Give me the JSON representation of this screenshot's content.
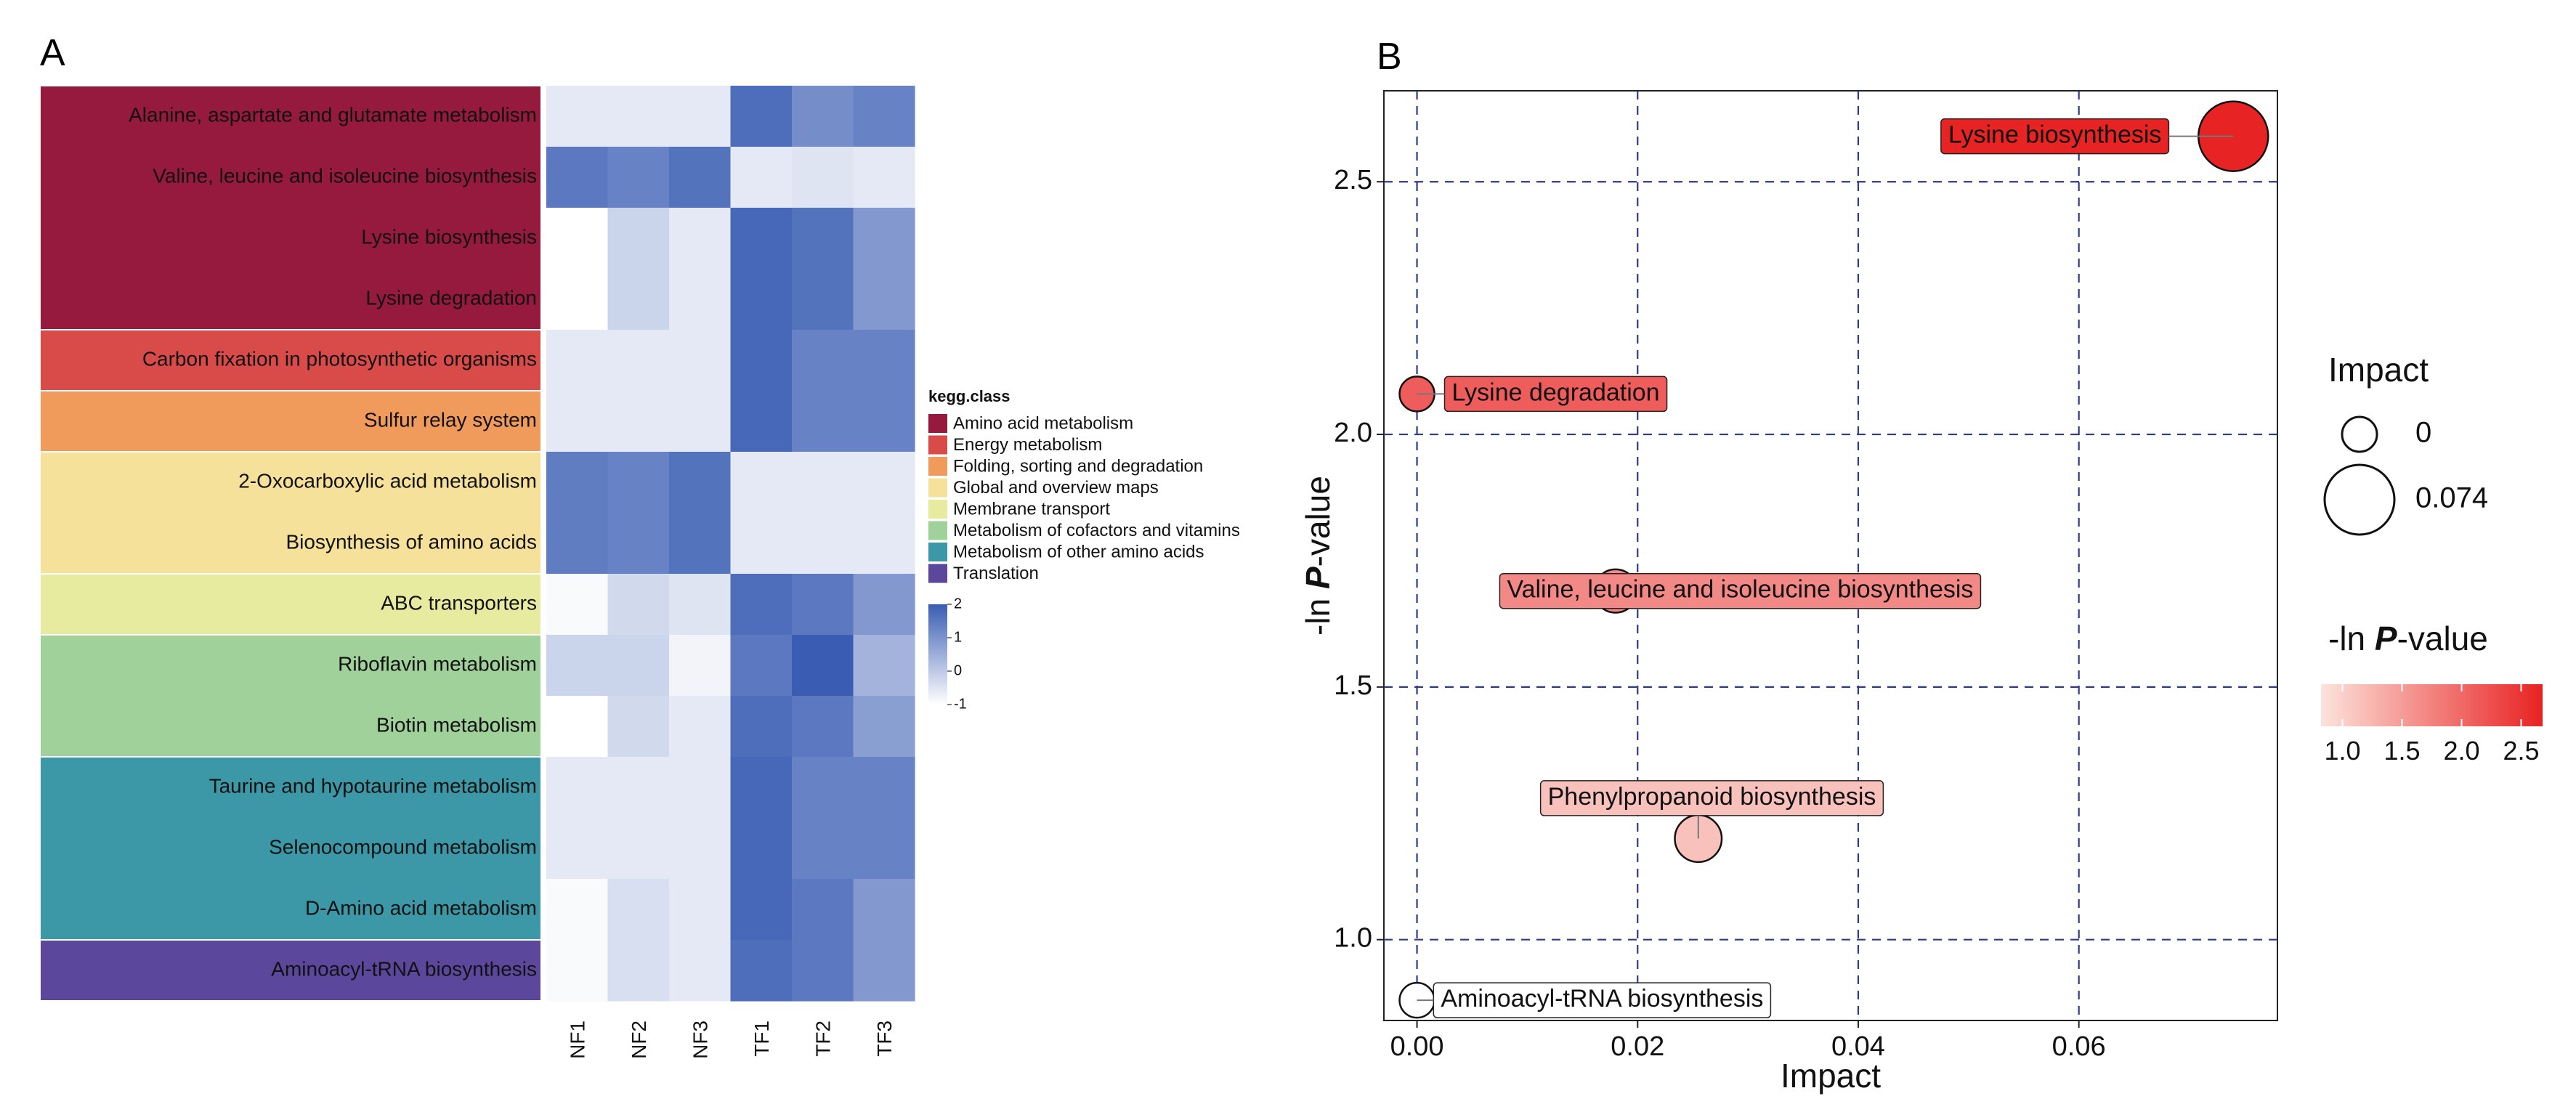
{
  "panel_a": {
    "label": "A",
    "legend_title": "kegg.class",
    "classes": [
      {
        "name": "Amino acid metabolism",
        "color": "#96193E"
      },
      {
        "name": "Energy metabolism",
        "color": "#D94B48"
      },
      {
        "name": "Folding, sorting and degradation",
        "color": "#F09A5C"
      },
      {
        "name": "Global and overview maps",
        "color": "#F6E19A"
      },
      {
        "name": "Membrane transport",
        "color": "#E7EBA0"
      },
      {
        "name": "Metabolism of cofactors and vitamins",
        "color": "#A0D19A"
      },
      {
        "name": "Metabolism of other amino acids",
        "color": "#3C98A7"
      },
      {
        "name": "Translation",
        "color": "#5B479C"
      }
    ],
    "color_scale": {
      "ticks": [
        2,
        1,
        0,
        -1
      ],
      "low": "#FFFFFF",
      "high": "#3A5DB3"
    }
  },
  "panel_b": {
    "label": "B",
    "size_legend": {
      "title": "Impact",
      "values": [
        "0",
        "0.074"
      ]
    },
    "color_legend": {
      "title_prefix": "-ln ",
      "title_italic": "P",
      "title_suffix": "-value",
      "ticks": [
        "1.0",
        "1.5",
        "2.0",
        "2.5"
      ],
      "low": "#FDE3DC",
      "high": "#E82222"
    }
  },
  "chart_data": [
    {
      "type": "heatmap",
      "title": "",
      "columns": [
        "NF1",
        "NF2",
        "NF3",
        "TF1",
        "TF2",
        "TF3"
      ],
      "rows": [
        {
          "pathway": "Alanine, aspartate and glutamate metabolism",
          "class": "Amino acid metabolism",
          "values": [
            -0.6,
            -0.6,
            -0.6,
            1.7,
            1.1,
            1.3
          ]
        },
        {
          "pathway": "Valine, leucine and isoleucine biosynthesis",
          "class": "Amino acid metabolism",
          "values": [
            1.5,
            1.3,
            1.6,
            -0.6,
            -0.5,
            -0.6
          ]
        },
        {
          "pathway": "Lysine biosynthesis",
          "class": "Amino acid metabolism",
          "values": [
            -1.0,
            -0.2,
            -0.6,
            1.8,
            1.6,
            0.9
          ]
        },
        {
          "pathway": "Lysine degradation",
          "class": "Amino acid metabolism",
          "values": [
            -1.0,
            -0.2,
            -0.6,
            1.8,
            1.6,
            0.9
          ]
        },
        {
          "pathway": "Carbon fixation in photosynthetic organisms",
          "class": "Energy metabolism",
          "values": [
            -0.6,
            -0.6,
            -0.6,
            1.8,
            1.3,
            1.3
          ]
        },
        {
          "pathway": "Sulfur relay system",
          "class": "Folding, sorting and degradation",
          "values": [
            -0.6,
            -0.6,
            -0.6,
            1.8,
            1.3,
            1.3
          ]
        },
        {
          "pathway": "2-Oxocarboxylic acid metabolism",
          "class": "Global and overview maps",
          "values": [
            1.4,
            1.3,
            1.6,
            -0.6,
            -0.6,
            -0.6
          ]
        },
        {
          "pathway": "Biosynthesis of amino acids",
          "class": "Global and overview maps",
          "values": [
            1.4,
            1.3,
            1.6,
            -0.6,
            -0.6,
            -0.6
          ]
        },
        {
          "pathway": "ABC transporters",
          "class": "Membrane transport",
          "values": [
            -0.9,
            -0.3,
            -0.5,
            1.7,
            1.5,
            0.9
          ]
        },
        {
          "pathway": "Riboflavin metabolism",
          "class": "Metabolism of cofactors and vitamins",
          "values": [
            -0.2,
            -0.2,
            -0.8,
            1.5,
            2.0,
            0.4
          ]
        },
        {
          "pathway": "Biotin metabolism",
          "class": "Metabolism of cofactors and vitamins",
          "values": [
            -1.0,
            -0.3,
            -0.6,
            1.7,
            1.5,
            0.8
          ]
        },
        {
          "pathway": "Taurine and hypotaurine metabolism",
          "class": "Metabolism of other amino acids",
          "values": [
            -0.6,
            -0.6,
            -0.6,
            1.8,
            1.3,
            1.3
          ]
        },
        {
          "pathway": "Selenocompound metabolism",
          "class": "Metabolism of other amino acids",
          "values": [
            -0.6,
            -0.6,
            -0.6,
            1.8,
            1.3,
            1.3
          ]
        },
        {
          "pathway": "D-Amino acid metabolism",
          "class": "Metabolism of other amino acids",
          "values": [
            -0.9,
            -0.4,
            -0.6,
            1.8,
            1.5,
            0.9
          ]
        },
        {
          "pathway": "Aminoacyl-tRNA biosynthesis",
          "class": "Translation",
          "values": [
            -0.9,
            -0.4,
            -0.6,
            1.7,
            1.5,
            0.9
          ]
        }
      ]
    },
    {
      "type": "scatter",
      "title": "",
      "xlabel": "Impact",
      "ylabel_prefix": "-ln ",
      "ylabel_italic": "P",
      "ylabel_suffix": "-value",
      "xlim": [
        -0.003,
        0.078
      ],
      "ylim": [
        0.84,
        2.68
      ],
      "xticks": [
        0,
        0.02,
        0.04,
        0.06
      ],
      "xtick_labels": [
        "0.00",
        "0.02",
        "0.04",
        "0.06"
      ],
      "yticks": [
        1.0,
        1.5,
        2.0,
        2.5
      ],
      "ytick_labels": [
        "1.0",
        "1.5",
        "2.0",
        "2.5"
      ],
      "points": [
        {
          "label": "Lysine biosynthesis",
          "impact": 0.074,
          "neg_log_p": 2.59
        },
        {
          "label": "Lysine degradation",
          "impact": 0.0,
          "neg_log_p": 2.08
        },
        {
          "label": "Valine, leucine and isoleucine biosynthesis",
          "impact": 0.018,
          "neg_log_p": 1.69
        },
        {
          "label": "Phenylpropanoid biosynthesis",
          "impact": 0.0255,
          "neg_log_p": 1.2
        },
        {
          "label": "Aminoacyl-tRNA biosynthesis",
          "impact": 0.0,
          "neg_log_p": 0.88
        }
      ]
    }
  ]
}
